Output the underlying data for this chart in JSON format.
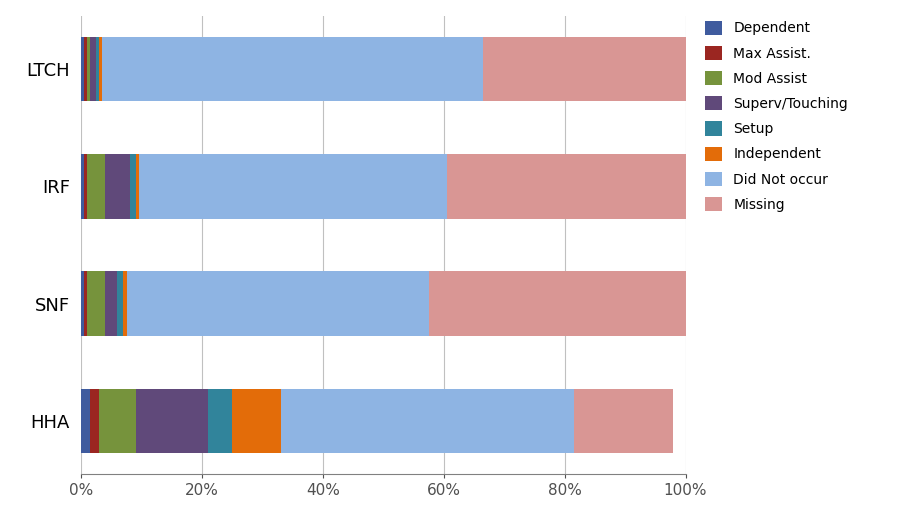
{
  "categories": [
    "LTCH",
    "IRF",
    "SNF",
    "HHA"
  ],
  "series": {
    "Dependent": [
      0.005,
      0.005,
      0.005,
      0.015
    ],
    "Max Assist.": [
      0.005,
      0.005,
      0.005,
      0.015
    ],
    "Mod Assist": [
      0.005,
      0.03,
      0.03,
      0.06
    ],
    "Superv/Touching": [
      0.01,
      0.04,
      0.02,
      0.12
    ],
    "Setup": [
      0.005,
      0.01,
      0.01,
      0.04
    ],
    "Independent": [
      0.005,
      0.005,
      0.005,
      0.08
    ],
    "Did Not occur": [
      0.63,
      0.51,
      0.5,
      0.485
    ],
    "Missing": [
      0.335,
      0.395,
      0.435,
      0.165
    ]
  },
  "colors": {
    "Dependent": "#3F5B9E",
    "Max Assist.": "#9B2621",
    "Mod Assist": "#76933C",
    "Superv/Touching": "#60497A",
    "Setup": "#31849B",
    "Independent": "#E36C09",
    "Did Not occur": "#8EB4E3",
    "Missing": "#D99694"
  },
  "xlim": [
    0,
    1.0
  ],
  "xticks": [
    0.0,
    0.2,
    0.4,
    0.6,
    0.8,
    1.0
  ],
  "xticklabels": [
    "0%",
    "20%",
    "40%",
    "60%",
    "80%",
    "100%"
  ],
  "background_color": "#FFFFFF",
  "grid_color": "#C0C0C0",
  "bar_height": 0.55
}
